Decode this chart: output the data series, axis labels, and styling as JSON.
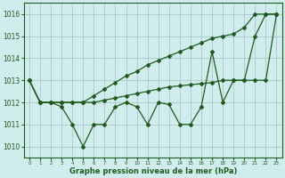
{
  "x": [
    0,
    1,
    2,
    3,
    4,
    5,
    6,
    7,
    8,
    9,
    10,
    11,
    12,
    13,
    14,
    15,
    16,
    17,
    18,
    19,
    20,
    21,
    22,
    23
  ],
  "y_zigzag": [
    1013.0,
    1012.0,
    1012.0,
    1011.8,
    1011.0,
    1010.0,
    1011.0,
    1011.0,
    1011.8,
    1012.0,
    1011.8,
    1011.0,
    1012.0,
    1011.9,
    1011.0,
    1011.0,
    1011.8,
    1014.3,
    1012.0,
    1013.0,
    1013.0,
    1015.0,
    1016.0,
    1016.0
  ],
  "y_high": [
    1013.0,
    1012.0,
    1012.0,
    1012.0,
    1012.0,
    1012.0,
    1012.3,
    1012.6,
    1012.9,
    1013.2,
    1013.4,
    1013.7,
    1013.9,
    1014.1,
    1014.3,
    1014.5,
    1014.7,
    1014.9,
    1015.0,
    1015.1,
    1015.4,
    1016.0,
    1016.0,
    1016.0
  ],
  "y_low": [
    1013.0,
    1012.0,
    1012.0,
    1012.0,
    1012.0,
    1012.0,
    1012.0,
    1012.1,
    1012.2,
    1012.3,
    1012.4,
    1012.5,
    1012.6,
    1012.7,
    1012.75,
    1012.8,
    1012.85,
    1012.9,
    1013.0,
    1013.0,
    1013.0,
    1013.0,
    1013.0,
    1016.0
  ],
  "line_color": "#1e5c1e",
  "bg_color": "#d0ecec",
  "grid_color": "#a8c8c8",
  "xlabel": "Graphe pression niveau de la mer (hPa)",
  "ylim": [
    1009.5,
    1016.5
  ],
  "xlim": [
    -0.5,
    23.5
  ],
  "yticks": [
    1010,
    1011,
    1012,
    1013,
    1014,
    1015,
    1016
  ],
  "xticks": [
    0,
    1,
    2,
    3,
    4,
    5,
    6,
    7,
    8,
    9,
    10,
    11,
    12,
    13,
    14,
    15,
    16,
    17,
    18,
    19,
    20,
    21,
    22,
    23
  ]
}
